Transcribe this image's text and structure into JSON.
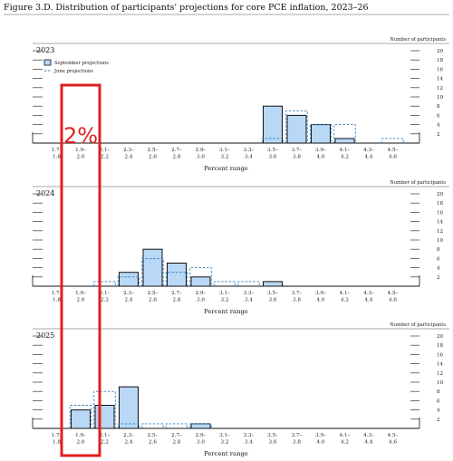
{
  "figure_title": "Figure 3.D. Distribution of participants' projections for core PCE inflation, 2023–26",
  "colors": {
    "bar_fill": "#b9d8f5",
    "bar_stroke": "#111111",
    "june_line": "#2f7fc4",
    "annotation": "#e02020"
  },
  "annotation": {
    "text": "2%",
    "category_index": 1
  },
  "chart_data": [
    {
      "type": "bar",
      "panel_label": "2023",
      "ylabel": "Number of participants",
      "ylim": [
        0,
        20
      ],
      "yticks": [
        2,
        4,
        6,
        8,
        10,
        12,
        14,
        16,
        18,
        20
      ],
      "xlabel": "Percent range",
      "legend": {
        "placement": "top-left",
        "entries": [
          "September projections",
          "June projections"
        ]
      },
      "categories": [
        "1.7–1.8",
        "1.9–2.0",
        "2.1–2.2",
        "2.3–2.4",
        "2.5–2.6",
        "2.7–2.8",
        "2.9–3.0",
        "3.1–3.2",
        "3.3–3.4",
        "3.5–3.6",
        "3.7–3.8",
        "3.9–4.0",
        "4.1–4.2",
        "4.3–4.4",
        "4.5–4.6"
      ],
      "category_lines": [
        [
          "1.7–",
          "1.8"
        ],
        [
          "1.9–",
          "2.0"
        ],
        [
          "2.1–",
          "2.2"
        ],
        [
          "2.3–",
          "2.4"
        ],
        [
          "2.5–",
          "2.6"
        ],
        [
          "2.7–",
          "2.8"
        ],
        [
          "2.9–",
          "3.0"
        ],
        [
          "3.1–",
          "3.2"
        ],
        [
          "3.3–",
          "3.4"
        ],
        [
          "3.5–",
          "3.6"
        ],
        [
          "3.7–",
          "3.8"
        ],
        [
          "3.9–",
          "4.0"
        ],
        [
          "4.1–",
          "4.2"
        ],
        [
          "4.3–",
          "4.4"
        ],
        [
          "4.5–",
          "4.6"
        ]
      ],
      "series": [
        {
          "name": "September projections",
          "values": [
            0,
            0,
            0,
            0,
            0,
            0,
            0,
            0,
            0,
            8,
            6,
            4,
            1,
            0,
            0
          ]
        },
        {
          "name": "June projections",
          "values": [
            0,
            0,
            0,
            0,
            0,
            0,
            0,
            0,
            0,
            1,
            7,
            4,
            4,
            0,
            1
          ]
        }
      ]
    },
    {
      "type": "bar",
      "panel_label": "2024",
      "ylabel": "Number of participants",
      "ylim": [
        0,
        20
      ],
      "yticks": [
        2,
        4,
        6,
        8,
        10,
        12,
        14,
        16,
        18,
        20
      ],
      "xlabel": "Percent range",
      "categories": [
        "1.7–1.8",
        "1.9–2.0",
        "2.1–2.2",
        "2.3–2.4",
        "2.5–2.6",
        "2.7–2.8",
        "2.9–3.0",
        "3.1–3.2",
        "3.3–3.4",
        "3.5–3.6",
        "3.7–3.8",
        "3.9–4.0",
        "4.1–4.2",
        "4.3–4.4",
        "4.5–4.6"
      ],
      "category_lines": [
        [
          "1.7–",
          "1.8"
        ],
        [
          "1.9–",
          "2.0"
        ],
        [
          "2.1–",
          "2.2"
        ],
        [
          "2.3–",
          "2.4"
        ],
        [
          "2.5–",
          "2.6"
        ],
        [
          "2.7–",
          "2.8"
        ],
        [
          "2.9–",
          "3.0"
        ],
        [
          "3.1–",
          "3.2"
        ],
        [
          "3.3–",
          "3.4"
        ],
        [
          "3.5–",
          "3.6"
        ],
        [
          "3.7–",
          "3.8"
        ],
        [
          "3.9–",
          "4.0"
        ],
        [
          "4.1–",
          "4.2"
        ],
        [
          "4.3–",
          "4.4"
        ],
        [
          "4.5–",
          "4.6"
        ]
      ],
      "series": [
        {
          "name": "September projections",
          "values": [
            0,
            0,
            0,
            3,
            8,
            5,
            2,
            0,
            0,
            1,
            0,
            0,
            0,
            0,
            0
          ]
        },
        {
          "name": "June projections",
          "values": [
            0,
            0,
            1,
            2,
            6,
            3,
            4,
            1,
            1,
            0,
            0,
            0,
            0,
            0,
            0
          ]
        }
      ]
    },
    {
      "type": "bar",
      "panel_label": "2025",
      "ylabel": "Number of participants",
      "ylim": [
        0,
        20
      ],
      "yticks": [
        2,
        4,
        6,
        8,
        10,
        12,
        14,
        16,
        18,
        20
      ],
      "xlabel": "Percent range",
      "categories": [
        "1.7–1.8",
        "1.9–2.0",
        "2.1–2.2",
        "2.3–2.4",
        "2.5–2.6",
        "2.7–2.8",
        "2.9–3.0",
        "3.1–3.2",
        "3.3–3.4",
        "3.5–3.6",
        "3.7–3.8",
        "3.9–4.0",
        "4.1–4.2",
        "4.3–4.4",
        "4.5–4.6"
      ],
      "category_lines": [
        [
          "1.7–",
          "1.8"
        ],
        [
          "1.9–",
          "2.0"
        ],
        [
          "2.1–",
          "2.2"
        ],
        [
          "2.3–",
          "2.4"
        ],
        [
          "2.5–",
          "2.6"
        ],
        [
          "2.7–",
          "2.8"
        ],
        [
          "2.9–",
          "3.0"
        ],
        [
          "3.1–",
          "3.2"
        ],
        [
          "3.3–",
          "3.4"
        ],
        [
          "3.5–",
          "3.6"
        ],
        [
          "3.7–",
          "3.8"
        ],
        [
          "3.9–",
          "4.0"
        ],
        [
          "4.1–",
          "4.2"
        ],
        [
          "4.3–",
          "4.4"
        ],
        [
          "4.5–",
          "4.6"
        ]
      ],
      "series": [
        {
          "name": "September projections",
          "values": [
            0,
            4,
            5,
            9,
            0,
            0,
            1,
            0,
            0,
            0,
            0,
            0,
            0,
            0,
            0
          ]
        },
        {
          "name": "June projections",
          "values": [
            0,
            5,
            8,
            1,
            1,
            1,
            1,
            0,
            0,
            0,
            0,
            0,
            0,
            0,
            0
          ]
        }
      ]
    }
  ]
}
